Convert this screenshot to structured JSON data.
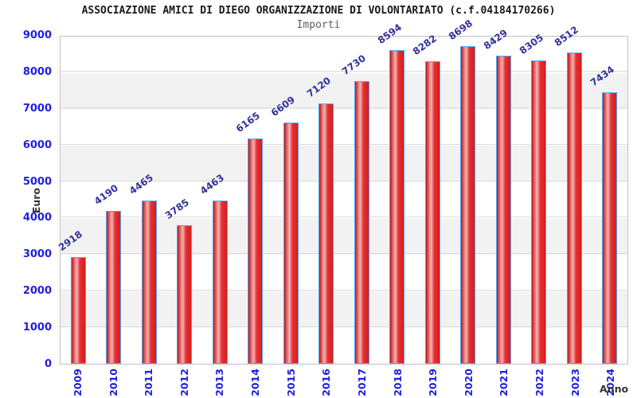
{
  "header": {
    "title": "ASSOCIAZIONE AMICI DI DIEGO ORGANIZZAZIONE DI VOLONTARIATO (c.f.04184170266)",
    "subtitle": "Importi"
  },
  "chart_data": {
    "type": "bar",
    "title": "ASSOCIAZIONE AMICI DI DIEGO ORGANIZZAZIONE DI VOLONTARIATO (c.f.04184170266)",
    "subtitle": "Importi",
    "xlabel": "Anno",
    "ylabel": "Euro",
    "categories": [
      "2009",
      "2010",
      "2011",
      "2012",
      "2013",
      "2014",
      "2015",
      "2016",
      "2017",
      "2018",
      "2019",
      "2020",
      "2021",
      "2022",
      "2023",
      "2024"
    ],
    "values": [
      2918,
      4190,
      4465,
      3785,
      4463,
      6165,
      6609,
      7120,
      7730,
      8594,
      8282,
      8698,
      8429,
      8305,
      8512,
      7434
    ],
    "ylim": [
      0,
      9000
    ],
    "ytick_interval": 1000,
    "yticks": [
      0,
      1000,
      2000,
      3000,
      4000,
      5000,
      6000,
      7000,
      8000,
      9000
    ],
    "grid": true,
    "legend_position": "none",
    "bar_labels_rotated": true,
    "colors": {
      "bar_fill_edge": "#bb1717",
      "bar_fill_highlight": "#f6b3b3",
      "bar_fill_main": "#df2222",
      "bar_border": "#4da3f5",
      "tick_label": "#1f1fe0",
      "value_label": "#333399",
      "axis_title": "#333333",
      "grid_line": "#dcdcdc",
      "band_gray": "#f2f2f2",
      "plot_border": "#c0c0c0",
      "title": "#1a1a1a",
      "subtitle": "#5f5f5f"
    }
  }
}
